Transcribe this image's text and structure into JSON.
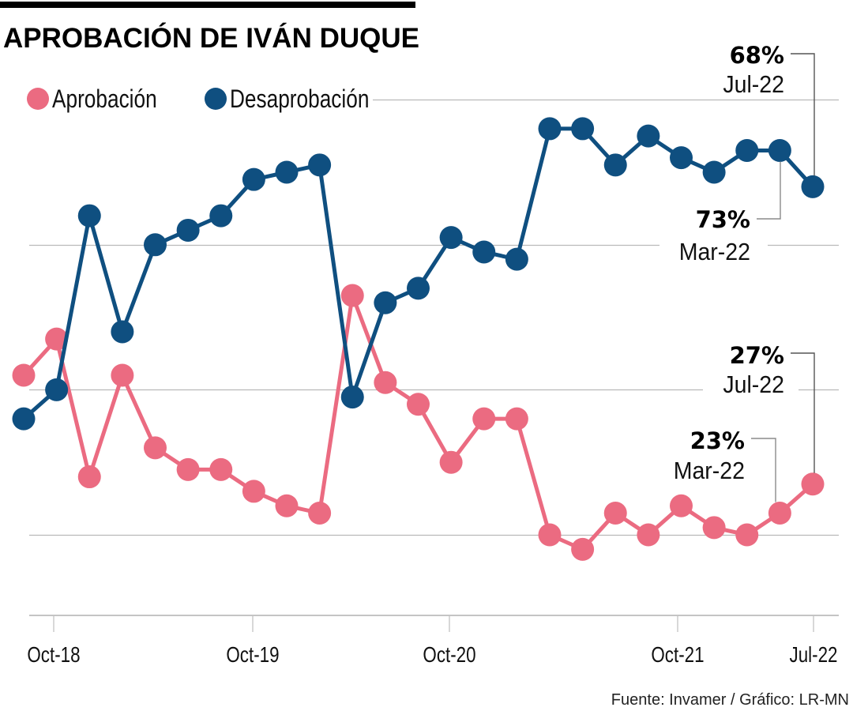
{
  "title": "APROBACIÓN DE IVÁN DUQUE",
  "source": "Fuente: Invamer / Gráfico: LR-MN",
  "colors": {
    "aprobacion": "#EB6B81",
    "desaprobacion": "#0F4F80",
    "title_bar": "#000000",
    "grid": "#B9B9B9"
  },
  "legend": [
    {
      "label": "Aprobación",
      "series": "aprobacion"
    },
    {
      "label": "Desaprobación",
      "series": "desaprobacion"
    }
  ],
  "annotations": [
    {
      "series": "desaprobacion",
      "point_index": 24,
      "value_label": "68%",
      "date_label": "Jul-22"
    },
    {
      "series": "desaprobacion",
      "point_index": 23,
      "value_label": "73%",
      "date_label": "Mar-22"
    },
    {
      "series": "aprobacion",
      "point_index": 24,
      "value_label": "27%",
      "date_label": "Jul-22"
    },
    {
      "series": "aprobacion",
      "point_index": 23,
      "value_label": "23%",
      "date_label": "Mar-22"
    }
  ],
  "chart_data": {
    "type": "line",
    "title": "APROBACIÓN DE IVÁN DUQUE",
    "xlabel": "",
    "ylabel": "",
    "x": [
      1,
      2,
      3,
      4,
      5,
      6,
      7,
      8,
      9,
      10,
      11,
      12,
      13,
      14,
      15,
      16,
      17,
      18,
      19,
      20,
      21,
      22,
      23,
      24,
      25
    ],
    "x_ticks": [
      {
        "x": 2,
        "label": "Oct-18"
      },
      {
        "x": 8,
        "label": "Oct-19"
      },
      {
        "x": 14,
        "label": "Oct-20"
      },
      {
        "x": 21,
        "label": "Oct-21"
      },
      {
        "x": 25,
        "label": "Jul-22"
      }
    ],
    "y_gridlines": [
      20,
      40,
      60,
      80
    ],
    "ylim": [
      9,
      85
    ],
    "grid": true,
    "legend_position": "top-left",
    "series": [
      {
        "name": "Aprobación",
        "key": "aprobacion",
        "values": [
          42,
          47,
          28,
          42,
          32,
          29,
          29,
          26,
          24,
          23,
          53,
          41,
          38,
          30,
          36,
          36,
          20,
          18,
          23,
          20,
          24,
          21,
          20,
          23,
          27
        ]
      },
      {
        "name": "Desaprobación",
        "key": "desaprobacion",
        "values": [
          36,
          40,
          64,
          48,
          60,
          62,
          64,
          69,
          70,
          71,
          39,
          52,
          54,
          61,
          59,
          58,
          76,
          76,
          71,
          75,
          72,
          70,
          73,
          73,
          68
        ]
      }
    ],
    "annotations": [
      {
        "series": "Desaprobación",
        "label": "68%",
        "sublabel": "Jul-22"
      },
      {
        "series": "Desaprobación",
        "label": "73%",
        "sublabel": "Mar-22"
      },
      {
        "series": "Aprobación",
        "label": "27%",
        "sublabel": "Jul-22"
      },
      {
        "series": "Aprobación",
        "label": "23%",
        "sublabel": "Mar-22"
      }
    ],
    "source": "Fuente: Invamer / Gráfico: LR-MN"
  }
}
